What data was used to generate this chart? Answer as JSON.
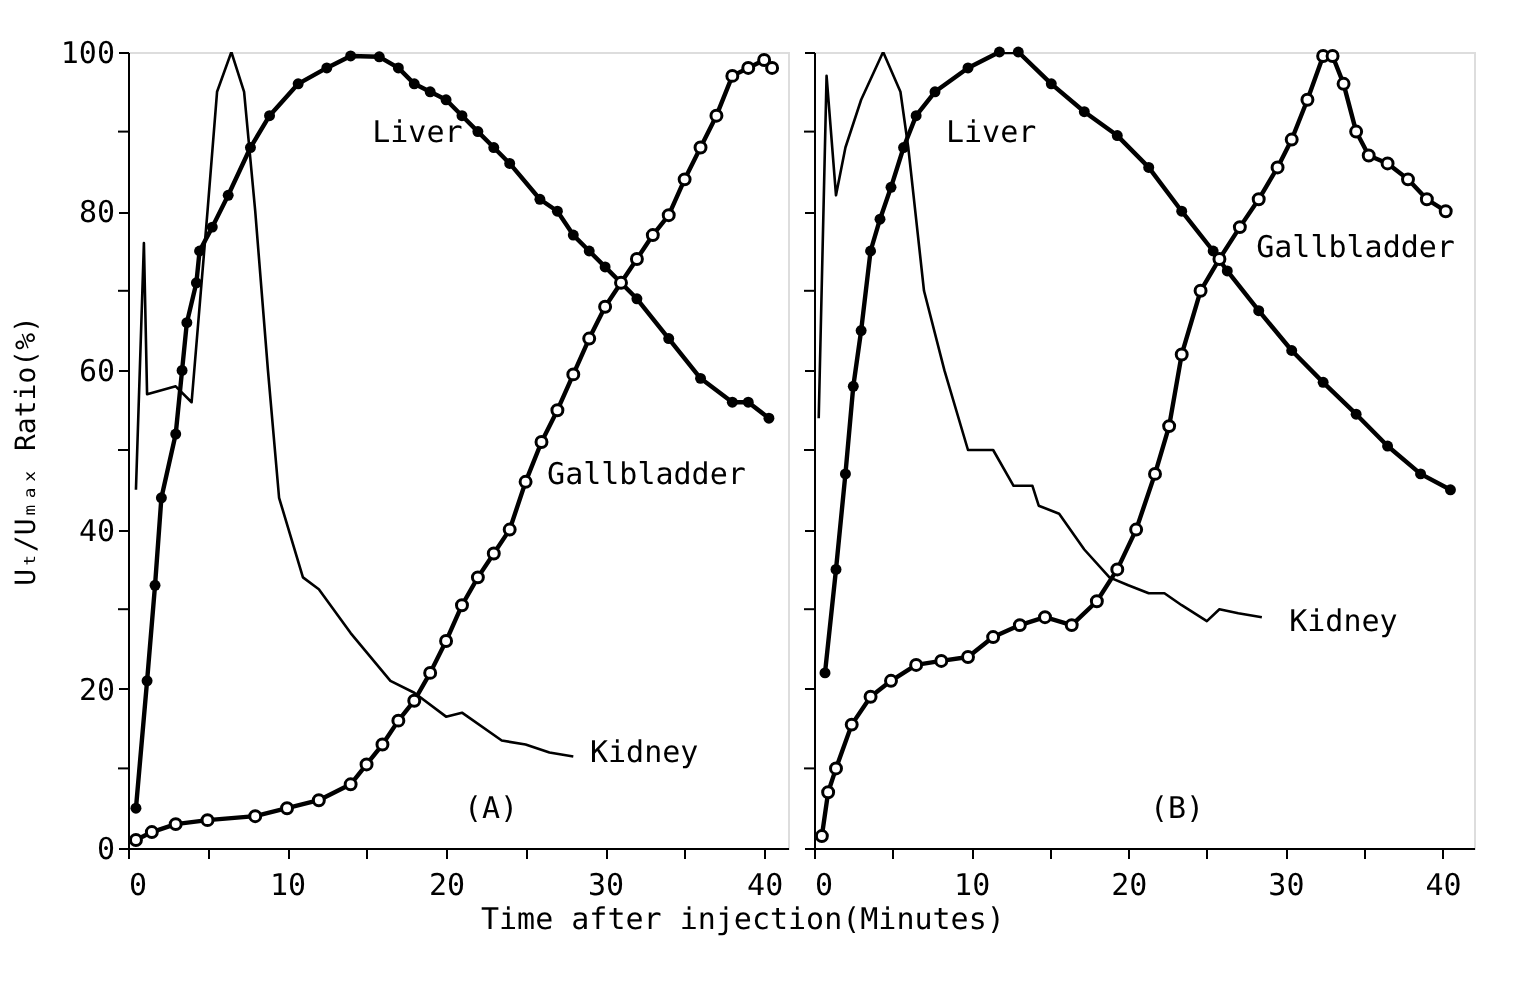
{
  "chart_data": [
    {
      "type": "line",
      "ylabel": "Uₜ/Uₘₐₓ Ratio(%)",
      "xlabel": "Time  after  injection(Minutes)",
      "xlim": [
        0,
        41.5
      ],
      "ylim": [
        0,
        100
      ],
      "xticks": [
        0,
        {
          "value": 5,
          "label": null
        },
        10,
        {
          "value": 15,
          "label": null
        },
        20,
        {
          "value": 25,
          "label": null
        },
        30,
        {
          "value": 35,
          "label": null
        },
        40
      ],
      "yticks": [
        0,
        {
          "value": 10,
          "label": null
        },
        20,
        {
          "value": 30,
          "label": null
        },
        40,
        {
          "value": 50,
          "label": null
        },
        60,
        {
          "value": 70,
          "label": null
        },
        80,
        {
          "value": 90,
          "label": null
        },
        100
      ],
      "grid": false,
      "legend": false,
      "annotations": [
        "(A)"
      ],
      "series": [
        {
          "name": "Liver",
          "color": "#000000",
          "marker": "circle",
          "x": [
            0.5,
            1.2,
            1.7,
            2.1,
            3,
            3.4,
            3.7,
            4.3,
            4.5,
            5.3,
            6.3,
            7.7,
            8.9,
            10.7,
            12.5,
            14,
            15.8,
            17,
            18,
            19,
            20,
            21,
            22,
            23,
            24,
            25.9,
            27,
            28,
            29,
            30,
            32,
            34,
            36,
            38,
            39,
            40.3
          ],
          "values": [
            5,
            21,
            33,
            44,
            52,
            60,
            66,
            71,
            75,
            78,
            82,
            88,
            92,
            96,
            98,
            99.5,
            99.4,
            98,
            96,
            95,
            94,
            92,
            90,
            88,
            86,
            81.5,
            80,
            77,
            75,
            73,
            69,
            64,
            59,
            56,
            56,
            54
          ]
        },
        {
          "name": "Gallbladder",
          "color": "#000000",
          "marker": "circle",
          "x": [
            0.5,
            1.5,
            3,
            5,
            8,
            10,
            12,
            14,
            15,
            16,
            17,
            18,
            19,
            20,
            21,
            22,
            23,
            24,
            25,
            26,
            27,
            28,
            29,
            30,
            31,
            32,
            33,
            34,
            35,
            36,
            37,
            38,
            39,
            40,
            40.5
          ],
          "values": [
            1,
            2,
            3,
            3.5,
            4,
            5,
            6,
            8,
            10.5,
            13,
            16,
            18.5,
            22,
            26,
            30.5,
            34,
            37,
            40,
            46,
            51,
            55,
            59.5,
            64,
            68,
            71,
            74,
            77,
            79.5,
            84,
            88,
            92,
            97,
            98,
            99,
            98
          ]
        },
        {
          "name": "Kidney",
          "color": "#000000",
          "marker": "none",
          "x": [
            0.5,
            1,
            1.2,
            3,
            4,
            5,
            5.6,
            6.5,
            7.3,
            8,
            8.8,
            9.5,
            11,
            12,
            14,
            16.5,
            18,
            20,
            21,
            23.5,
            25,
            26.5,
            28
          ],
          "values": [
            45,
            76,
            57,
            58,
            56,
            80,
            95,
            100,
            95,
            80,
            60,
            44,
            34,
            32.5,
            27,
            21,
            19.5,
            16.5,
            17,
            13.5,
            13,
            12,
            11.5
          ]
        }
      ]
    },
    {
      "type": "line",
      "tick_labels": "x",
      "xlim": [
        0,
        42
      ],
      "ylim": [
        0,
        100
      ],
      "xticks": [
        0,
        {
          "value": 5,
          "label": null
        },
        10,
        {
          "value": 15,
          "label": null
        },
        20,
        {
          "value": 25,
          "label": null
        },
        30,
        {
          "value": 35,
          "label": null
        },
        40
      ],
      "yticks": [
        0,
        {
          "value": 10,
          "label": null
        },
        20,
        {
          "value": 30,
          "label": null
        },
        40,
        {
          "value": 50,
          "label": null
        },
        60,
        {
          "value": 70,
          "label": null
        },
        80,
        {
          "value": 90,
          "label": null
        },
        100
      ],
      "grid": false,
      "legend": false,
      "annotations": [
        "(B)"
      ],
      "series": [
        {
          "name": "Liver",
          "color": "#000000",
          "marker": "circle",
          "x": [
            0.7,
            1.4,
            2,
            2.5,
            3,
            3.6,
            4.2,
            4.9,
            5.7,
            6.5,
            7.7,
            9.8,
            11.8,
            13,
            15.1,
            17.2,
            19.3,
            21.3,
            23.4,
            25.4,
            26.3,
            28.3,
            30.4,
            32.4,
            34.5,
            36.5,
            38.6,
            40.5
          ],
          "values": [
            22,
            35,
            47,
            58,
            65,
            75,
            79,
            83,
            88,
            92,
            95,
            98,
            100,
            100,
            96,
            92.5,
            89.5,
            85.5,
            80,
            75,
            72.5,
            67.5,
            62.5,
            58.5,
            54.5,
            50.5,
            47,
            45
          ]
        },
        {
          "name": "Gallbladder",
          "color": "#000000",
          "marker": "circle",
          "x": [
            0.5,
            0.9,
            1.4,
            2.4,
            3.6,
            4.9,
            6.5,
            8.1,
            9.8,
            11.4,
            13.1,
            14.7,
            16.4,
            18,
            19.3,
            20.5,
            21.7,
            22.6,
            23.4,
            24.6,
            25.8,
            27.1,
            28.3,
            29.5,
            30.4,
            31.4,
            32.4,
            33,
            33.7,
            34.5,
            35.3,
            36.5,
            37.8,
            39,
            40.2
          ],
          "values": [
            1.5,
            7,
            10,
            15.5,
            19,
            21,
            23,
            23.5,
            24,
            26.5,
            28,
            29,
            28,
            31,
            35,
            40,
            47,
            53,
            62,
            70,
            74,
            78,
            81.5,
            85.5,
            89,
            94,
            99.5,
            99.5,
            96,
            90,
            87,
            86,
            84,
            81.5,
            80
          ]
        },
        {
          "name": "Kidney",
          "color": "#000000",
          "marker": "none",
          "x": [
            0.3,
            0.8,
            1.4,
            2,
            3,
            4.4,
            5.5,
            6,
            7,
            8.3,
            9.8,
            11.4,
            12.7,
            13.9,
            14.3,
            15.6,
            17.2,
            18.8,
            20,
            21.3,
            22.3,
            23.4,
            25,
            25.8,
            27,
            28.5
          ],
          "values": [
            54,
            97,
            82,
            88,
            94,
            100,
            95,
            88,
            70,
            60,
            50,
            50,
            45.5,
            45.5,
            43,
            42,
            37.5,
            34,
            33,
            32,
            32,
            30.5,
            28.5,
            30,
            29.5,
            29
          ]
        }
      ]
    }
  ]
}
